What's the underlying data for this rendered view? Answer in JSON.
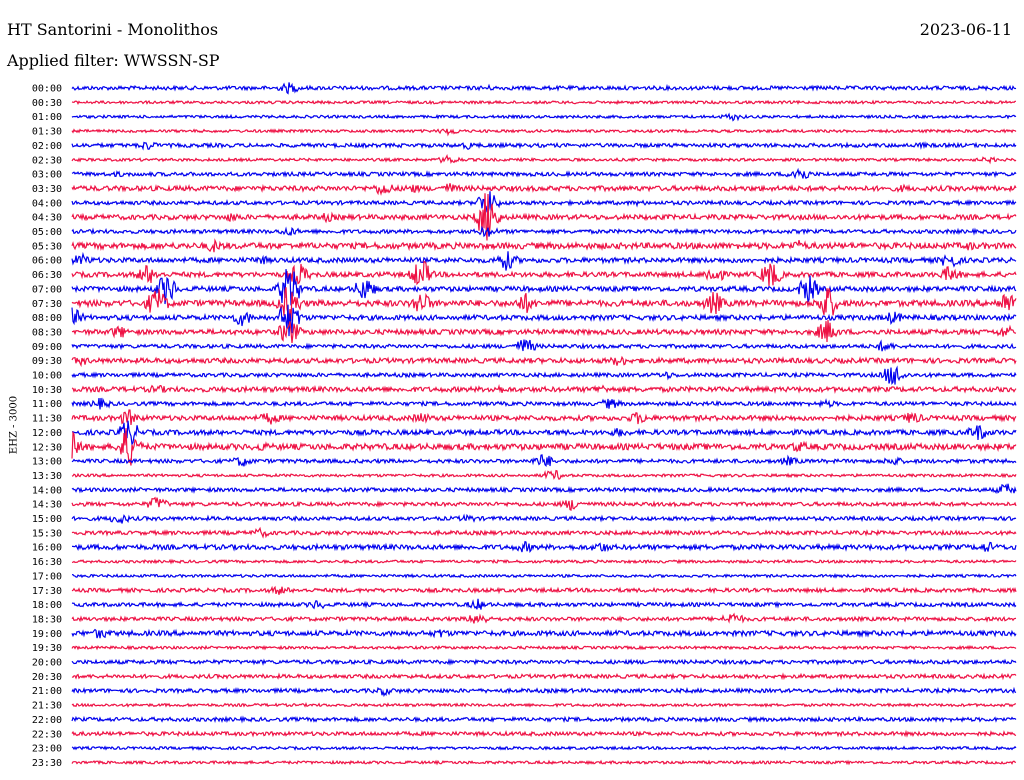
{
  "header": {
    "station": "HT Santorini - Monolithos",
    "date": "2023-06-11",
    "filter": "Applied filter: WWSSN-SP"
  },
  "chart_data": {
    "type": "line",
    "channel_label": "EHZ - 3000",
    "colors": {
      "odd": "#0000ee",
      "even": "#ee1144"
    },
    "grid": false,
    "traces": [
      {
        "time": "00:00",
        "level": 2,
        "events": [
          [
            23,
            5
          ],
          [
            44,
            2
          ]
        ]
      },
      {
        "time": "00:30",
        "level": 1,
        "events": []
      },
      {
        "time": "01:00",
        "level": 1,
        "events": [
          [
            70,
            3
          ]
        ]
      },
      {
        "time": "01:30",
        "level": 1,
        "events": [
          [
            40,
            3
          ]
        ]
      },
      {
        "time": "02:00",
        "level": 2,
        "events": [
          [
            8,
            4
          ],
          [
            42,
            3
          ],
          [
            90,
            2
          ]
        ]
      },
      {
        "time": "02:30",
        "level": 1,
        "events": [
          [
            40,
            4
          ],
          [
            97,
            2
          ]
        ]
      },
      {
        "time": "03:00",
        "level": 2,
        "events": [
          [
            77,
            8
          ],
          [
            5,
            2
          ]
        ]
      },
      {
        "time": "03:30",
        "level": 3,
        "events": [
          [
            33,
            7
          ],
          [
            36,
            4
          ],
          [
            40,
            5
          ],
          [
            88,
            3
          ]
        ]
      },
      {
        "time": "04:00",
        "level": 2,
        "events": [
          [
            44,
            14
          ],
          [
            60,
            2
          ]
        ]
      },
      {
        "time": "04:30",
        "level": 3,
        "events": [
          [
            44,
            28
          ],
          [
            17,
            4
          ],
          [
            27,
            4
          ]
        ]
      },
      {
        "time": "05:00",
        "level": 2,
        "events": [
          [
            23,
            4
          ],
          [
            44,
            5
          ]
        ]
      },
      {
        "time": "05:30",
        "level": 4,
        "events": [
          [
            15,
            6
          ],
          [
            77,
            5
          ],
          [
            95,
            4
          ]
        ]
      },
      {
        "time": "06:00",
        "level": 3,
        "events": [
          [
            1,
            6
          ],
          [
            20,
            4
          ],
          [
            46,
            10
          ],
          [
            93,
            8
          ]
        ]
      },
      {
        "time": "06:30",
        "level": 3,
        "events": [
          [
            8,
            10
          ],
          [
            24,
            12
          ],
          [
            37,
            16
          ],
          [
            68,
            9
          ],
          [
            74,
            14
          ],
          [
            93,
            8
          ]
        ]
      },
      {
        "time": "07:00",
        "level": 3,
        "events": [
          [
            10,
            16
          ],
          [
            23,
            25
          ],
          [
            31,
            12
          ],
          [
            78,
            14
          ]
        ]
      },
      {
        "time": "07:30",
        "level": 4,
        "events": [
          [
            9,
            16
          ],
          [
            23,
            20
          ],
          [
            37,
            12
          ],
          [
            48,
            10
          ],
          [
            68,
            12
          ],
          [
            80,
            18
          ],
          [
            99,
            12
          ]
        ]
      },
      {
        "time": "08:00",
        "level": 3,
        "events": [
          [
            0,
            10
          ],
          [
            18,
            8
          ],
          [
            23,
            20
          ],
          [
            87,
            6
          ]
        ]
      },
      {
        "time": "08:30",
        "level": 3,
        "events": [
          [
            5,
            6
          ],
          [
            23,
            14
          ],
          [
            80,
            12
          ],
          [
            99,
            6
          ]
        ]
      },
      {
        "time": "09:00",
        "level": 2,
        "events": [
          [
            48,
            8
          ],
          [
            86,
            5
          ]
        ]
      },
      {
        "time": "09:30",
        "level": 3,
        "events": [
          [
            1,
            4
          ],
          [
            58,
            5
          ]
        ]
      },
      {
        "time": "10:00",
        "level": 2,
        "events": [
          [
            63,
            3
          ],
          [
            87,
            12
          ]
        ]
      },
      {
        "time": "10:30",
        "level": 3,
        "events": [
          [
            9,
            4
          ],
          [
            45,
            4
          ],
          [
            56,
            4
          ]
        ]
      },
      {
        "time": "11:00",
        "level": 2,
        "events": [
          [
            3,
            5
          ],
          [
            57,
            5
          ],
          [
            80,
            3
          ]
        ]
      },
      {
        "time": "11:30",
        "level": 3,
        "events": [
          [
            6,
            8
          ],
          [
            21,
            6
          ],
          [
            37,
            5
          ],
          [
            60,
            6
          ],
          [
            89,
            6
          ]
        ]
      },
      {
        "time": "12:00",
        "level": 3,
        "events": [
          [
            6,
            14
          ],
          [
            58,
            4
          ],
          [
            96,
            8
          ]
        ]
      },
      {
        "time": "12:30",
        "level": 4,
        "events": [
          [
            0,
            14
          ],
          [
            6,
            22
          ],
          [
            20,
            4
          ],
          [
            77,
            5
          ]
        ]
      },
      {
        "time": "13:00",
        "level": 2,
        "events": [
          [
            18,
            5
          ],
          [
            50,
            7
          ],
          [
            76,
            4
          ],
          [
            87,
            4
          ]
        ]
      },
      {
        "time": "13:30",
        "level": 1,
        "events": [
          [
            51,
            5
          ]
        ]
      },
      {
        "time": "14:00",
        "level": 2,
        "events": [
          [
            99,
            6
          ]
        ]
      },
      {
        "time": "14:30",
        "level": 2,
        "events": [
          [
            9,
            7
          ],
          [
            53,
            6
          ]
        ]
      },
      {
        "time": "15:00",
        "level": 2,
        "events": [
          [
            5,
            5
          ],
          [
            42,
            3
          ]
        ]
      },
      {
        "time": "15:30",
        "level": 2,
        "events": [
          [
            20,
            4
          ]
        ]
      },
      {
        "time": "16:00",
        "level": 3,
        "events": [
          [
            48,
            5
          ],
          [
            56,
            5
          ],
          [
            97,
            5
          ]
        ]
      },
      {
        "time": "16:30",
        "level": 1,
        "events": []
      },
      {
        "time": "17:00",
        "level": 1,
        "events": []
      },
      {
        "time": "17:30",
        "level": 2,
        "events": [
          [
            22,
            4
          ]
        ]
      },
      {
        "time": "18:00",
        "level": 2,
        "events": [
          [
            26,
            4
          ],
          [
            43,
            5
          ]
        ]
      },
      {
        "time": "18:30",
        "level": 2,
        "events": [
          [
            43,
            6
          ],
          [
            70,
            6
          ]
        ]
      },
      {
        "time": "19:00",
        "level": 3,
        "events": [
          [
            3,
            5
          ],
          [
            39,
            4
          ]
        ]
      },
      {
        "time": "19:30",
        "level": 1,
        "events": []
      },
      {
        "time": "20:00",
        "level": 2,
        "events": []
      },
      {
        "time": "20:30",
        "level": 2,
        "events": []
      },
      {
        "time": "21:00",
        "level": 2,
        "events": [
          [
            33,
            4
          ]
        ]
      },
      {
        "time": "21:30",
        "level": 1,
        "events": []
      },
      {
        "time": "22:00",
        "level": 2,
        "events": []
      },
      {
        "time": "22:30",
        "level": 2,
        "events": []
      },
      {
        "time": "23:00",
        "level": 1,
        "events": []
      },
      {
        "time": "23:30",
        "level": 1,
        "events": []
      }
    ]
  }
}
